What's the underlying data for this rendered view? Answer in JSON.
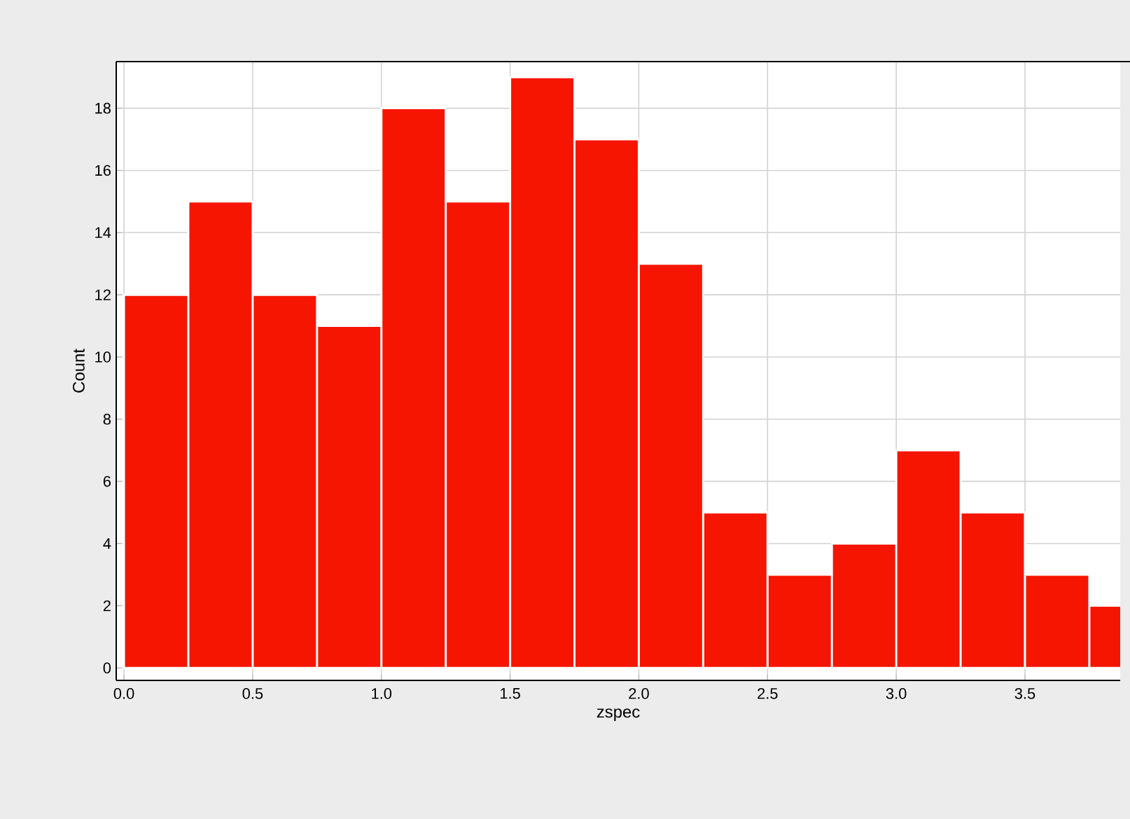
{
  "chart_data": {
    "type": "histogram",
    "xlabel": "zspec",
    "ylabel": "Count",
    "bins": [
      0,
      0.25,
      0.5,
      0.75,
      1.0,
      1.25,
      1.5,
      1.75,
      2.0,
      2.25,
      2.5,
      2.75,
      3.0,
      3.25,
      3.5,
      3.75,
      4.0
    ],
    "values": [
      12,
      15,
      12,
      11,
      18,
      15,
      19,
      17,
      13,
      5,
      3,
      4,
      7,
      5,
      3,
      2
    ],
    "color": "#f61500",
    "xlim": [
      -0.03,
      3.87
    ],
    "ylim": [
      -0.4,
      19.5
    ],
    "xticks": [
      {
        "value": 0,
        "label": "0.0"
      },
      {
        "value": 0.5,
        "label": "0.5"
      },
      {
        "value": 1.0,
        "label": "1.0"
      },
      {
        "value": 1.5,
        "label": "1.5"
      },
      {
        "value": 2.0,
        "label": "2.0"
      },
      {
        "value": 2.5,
        "label": "2.5"
      },
      {
        "value": 3.0,
        "label": "3.0"
      },
      {
        "value": 3.5,
        "label": "3.5"
      }
    ],
    "yticks": [
      0,
      2,
      4,
      6,
      8,
      10,
      12,
      14,
      16,
      18
    ],
    "grid": true
  }
}
